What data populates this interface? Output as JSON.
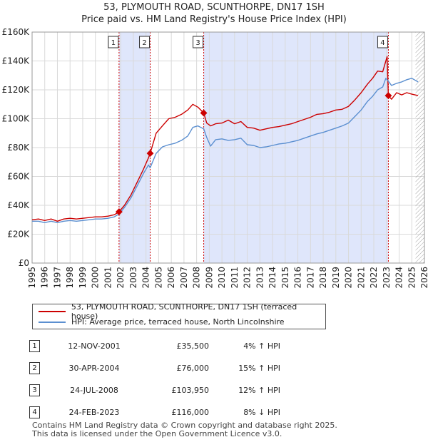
{
  "title": {
    "line1": "53, PLYMOUTH ROAD, SCUNTHORPE, DN17 1SH",
    "line2": "Price paid vs. HM Land Registry's House Price Index (HPI)"
  },
  "colors": {
    "property": "#cc0000",
    "hpi": "#5b8fd0",
    "shade": "#dfe6fb",
    "hatch": "#8a8a8a",
    "grid": "#d9d9d9"
  },
  "legend": {
    "property_label": "53, PLYMOUTH ROAD, SCUNTHORPE, DN17 1SH (terraced house)",
    "hpi_label": "HPI: Average price, terraced house, North Lincolnshire"
  },
  "sales": [
    {
      "num": "1",
      "date": "12-NOV-2001",
      "price": "£35,500",
      "pct": "4% ↑ HPI"
    },
    {
      "num": "2",
      "date": "30-APR-2004",
      "price": "£76,000",
      "pct": "15% ↑ HPI"
    },
    {
      "num": "3",
      "date": "24-JUL-2008",
      "price": "£103,950",
      "pct": "12% ↑ HPI"
    },
    {
      "num": "4",
      "date": "24-FEB-2023",
      "price": "£116,000",
      "pct": "8% ↓ HPI"
    }
  ],
  "footer": {
    "line1": "Contains HM Land Registry data © Crown copyright and database right 2025.",
    "line2": "This data is licensed under the Open Government Licence v3.0."
  },
  "chart_data": {
    "type": "line",
    "title": "Price paid vs. HM Land Registry's House Price Index (HPI)",
    "xlim": [
      1995,
      2026
    ],
    "ylim": [
      0,
      160000
    ],
    "x_ticks": [
      1995,
      1996,
      1997,
      1998,
      1999,
      2000,
      2001,
      2002,
      2003,
      2004,
      2005,
      2006,
      2007,
      2008,
      2009,
      2010,
      2011,
      2012,
      2013,
      2014,
      2015,
      2016,
      2017,
      2018,
      2019,
      2020,
      2021,
      2022,
      2023,
      2024,
      2025,
      2026
    ],
    "y_ticks": [
      0,
      20000,
      40000,
      60000,
      80000,
      100000,
      120000,
      140000,
      160000
    ],
    "y_tick_labels": [
      "£0",
      "£20K",
      "£40K",
      "£60K",
      "£80K",
      "£100K",
      "£120K",
      "£140K",
      "£160K"
    ],
    "shaded_ranges": [
      [
        2001.87,
        2004.33
      ],
      [
        2008.56,
        2023.15
      ]
    ],
    "hatched_from": 2025.3,
    "sale_markers": [
      {
        "label": "1",
        "x": 2001.87,
        "y": 35500
      },
      {
        "label": "2",
        "x": 2004.33,
        "y": 76000
      },
      {
        "label": "3",
        "x": 2008.56,
        "y": 103950
      },
      {
        "label": "4",
        "x": 2023.15,
        "y": 116000
      }
    ],
    "series": [
      {
        "name": "53, PLYMOUTH ROAD, SCUNTHORPE, DN17 1SH (terraced house)",
        "x": [
          1995,
          1995.5,
          1996,
          1996.5,
          1997,
          1997.5,
          1998,
          1998.5,
          1999,
          1999.5,
          2000,
          2000.5,
          2001,
          2001.5,
          2001.87,
          2002.3,
          2002.8,
          2003.3,
          2003.8,
          2004.2,
          2004.33,
          2004.8,
          2005.3,
          2005.8,
          2006.3,
          2006.8,
          2007.3,
          2007.7,
          2008.1,
          2008.56,
          2008.8,
          2009.1,
          2009.5,
          2010,
          2010.5,
          2011,
          2011.5,
          2012,
          2012.5,
          2013,
          2013.5,
          2014,
          2014.5,
          2015,
          2015.5,
          2016,
          2016.5,
          2017,
          2017.5,
          2018,
          2018.5,
          2019,
          2019.5,
          2020,
          2020.5,
          2021,
          2021.5,
          2021.9,
          2022.3,
          2022.7,
          2022.95,
          2023.05,
          2023.15,
          2023.4,
          2023.8,
          2024.2,
          2024.6,
          2025,
          2025.5
        ],
        "values": [
          30000,
          30500,
          29500,
          30500,
          29000,
          30500,
          31000,
          30500,
          31000,
          31500,
          32000,
          32000,
          32500,
          33500,
          35500,
          40000,
          47000,
          56000,
          65000,
          73000,
          76000,
          90000,
          95000,
          100000,
          101000,
          103000,
          106000,
          110000,
          108000,
          103950,
          97000,
          95000,
          96500,
          97000,
          99000,
          96500,
          98000,
          94000,
          93500,
          92000,
          93000,
          94000,
          94500,
          95500,
          96500,
          98000,
          99500,
          101000,
          103000,
          103500,
          104500,
          106000,
          106500,
          108500,
          113000,
          118000,
          124000,
          128000,
          133000,
          132500,
          140000,
          143000,
          116000,
          113500,
          118000,
          116500,
          118000,
          117000,
          116000
        ]
      },
      {
        "name": "HPI: Average price, terraced house, North Lincolnshire",
        "x": [
          1995,
          1995.5,
          1996,
          1996.5,
          1997,
          1997.5,
          1998,
          1998.5,
          1999,
          1999.5,
          2000,
          2000.5,
          2001,
          2001.5,
          2001.87,
          2002.3,
          2002.8,
          2003.3,
          2003.8,
          2004.2,
          2004.33,
          2004.8,
          2005.3,
          2005.8,
          2006.3,
          2006.8,
          2007.3,
          2007.7,
          2008.1,
          2008.56,
          2008.8,
          2009.1,
          2009.5,
          2010,
          2010.5,
          2011,
          2011.5,
          2012,
          2012.5,
          2013,
          2013.5,
          2014,
          2014.5,
          2015,
          2015.5,
          2016,
          2016.5,
          2017,
          2017.5,
          2018,
          2018.5,
          2019,
          2019.5,
          2020,
          2020.5,
          2021,
          2021.5,
          2021.9,
          2022.3,
          2022.7,
          2022.95,
          2023.05,
          2023.15,
          2023.4,
          2023.8,
          2024.2,
          2024.6,
          2025,
          2025.5
        ],
        "values": [
          29000,
          29000,
          28000,
          29000,
          28000,
          29000,
          29500,
          29000,
          29500,
          30000,
          30500,
          30500,
          31000,
          32000,
          34000,
          38500,
          45000,
          53500,
          62000,
          68000,
          66000,
          76000,
          80500,
          82000,
          83000,
          85000,
          88000,
          94000,
          95000,
          93000,
          87000,
          81000,
          85500,
          86000,
          85000,
          85500,
          86500,
          82000,
          81500,
          80000,
          80500,
          81500,
          82500,
          83000,
          84000,
          85000,
          86500,
          88000,
          89500,
          90500,
          92000,
          93500,
          95000,
          97000,
          101500,
          106000,
          112000,
          115500,
          120000,
          122000,
          128000,
          127000,
          126000,
          123000,
          124500,
          125500,
          127000,
          128000,
          125500
        ]
      }
    ]
  }
}
